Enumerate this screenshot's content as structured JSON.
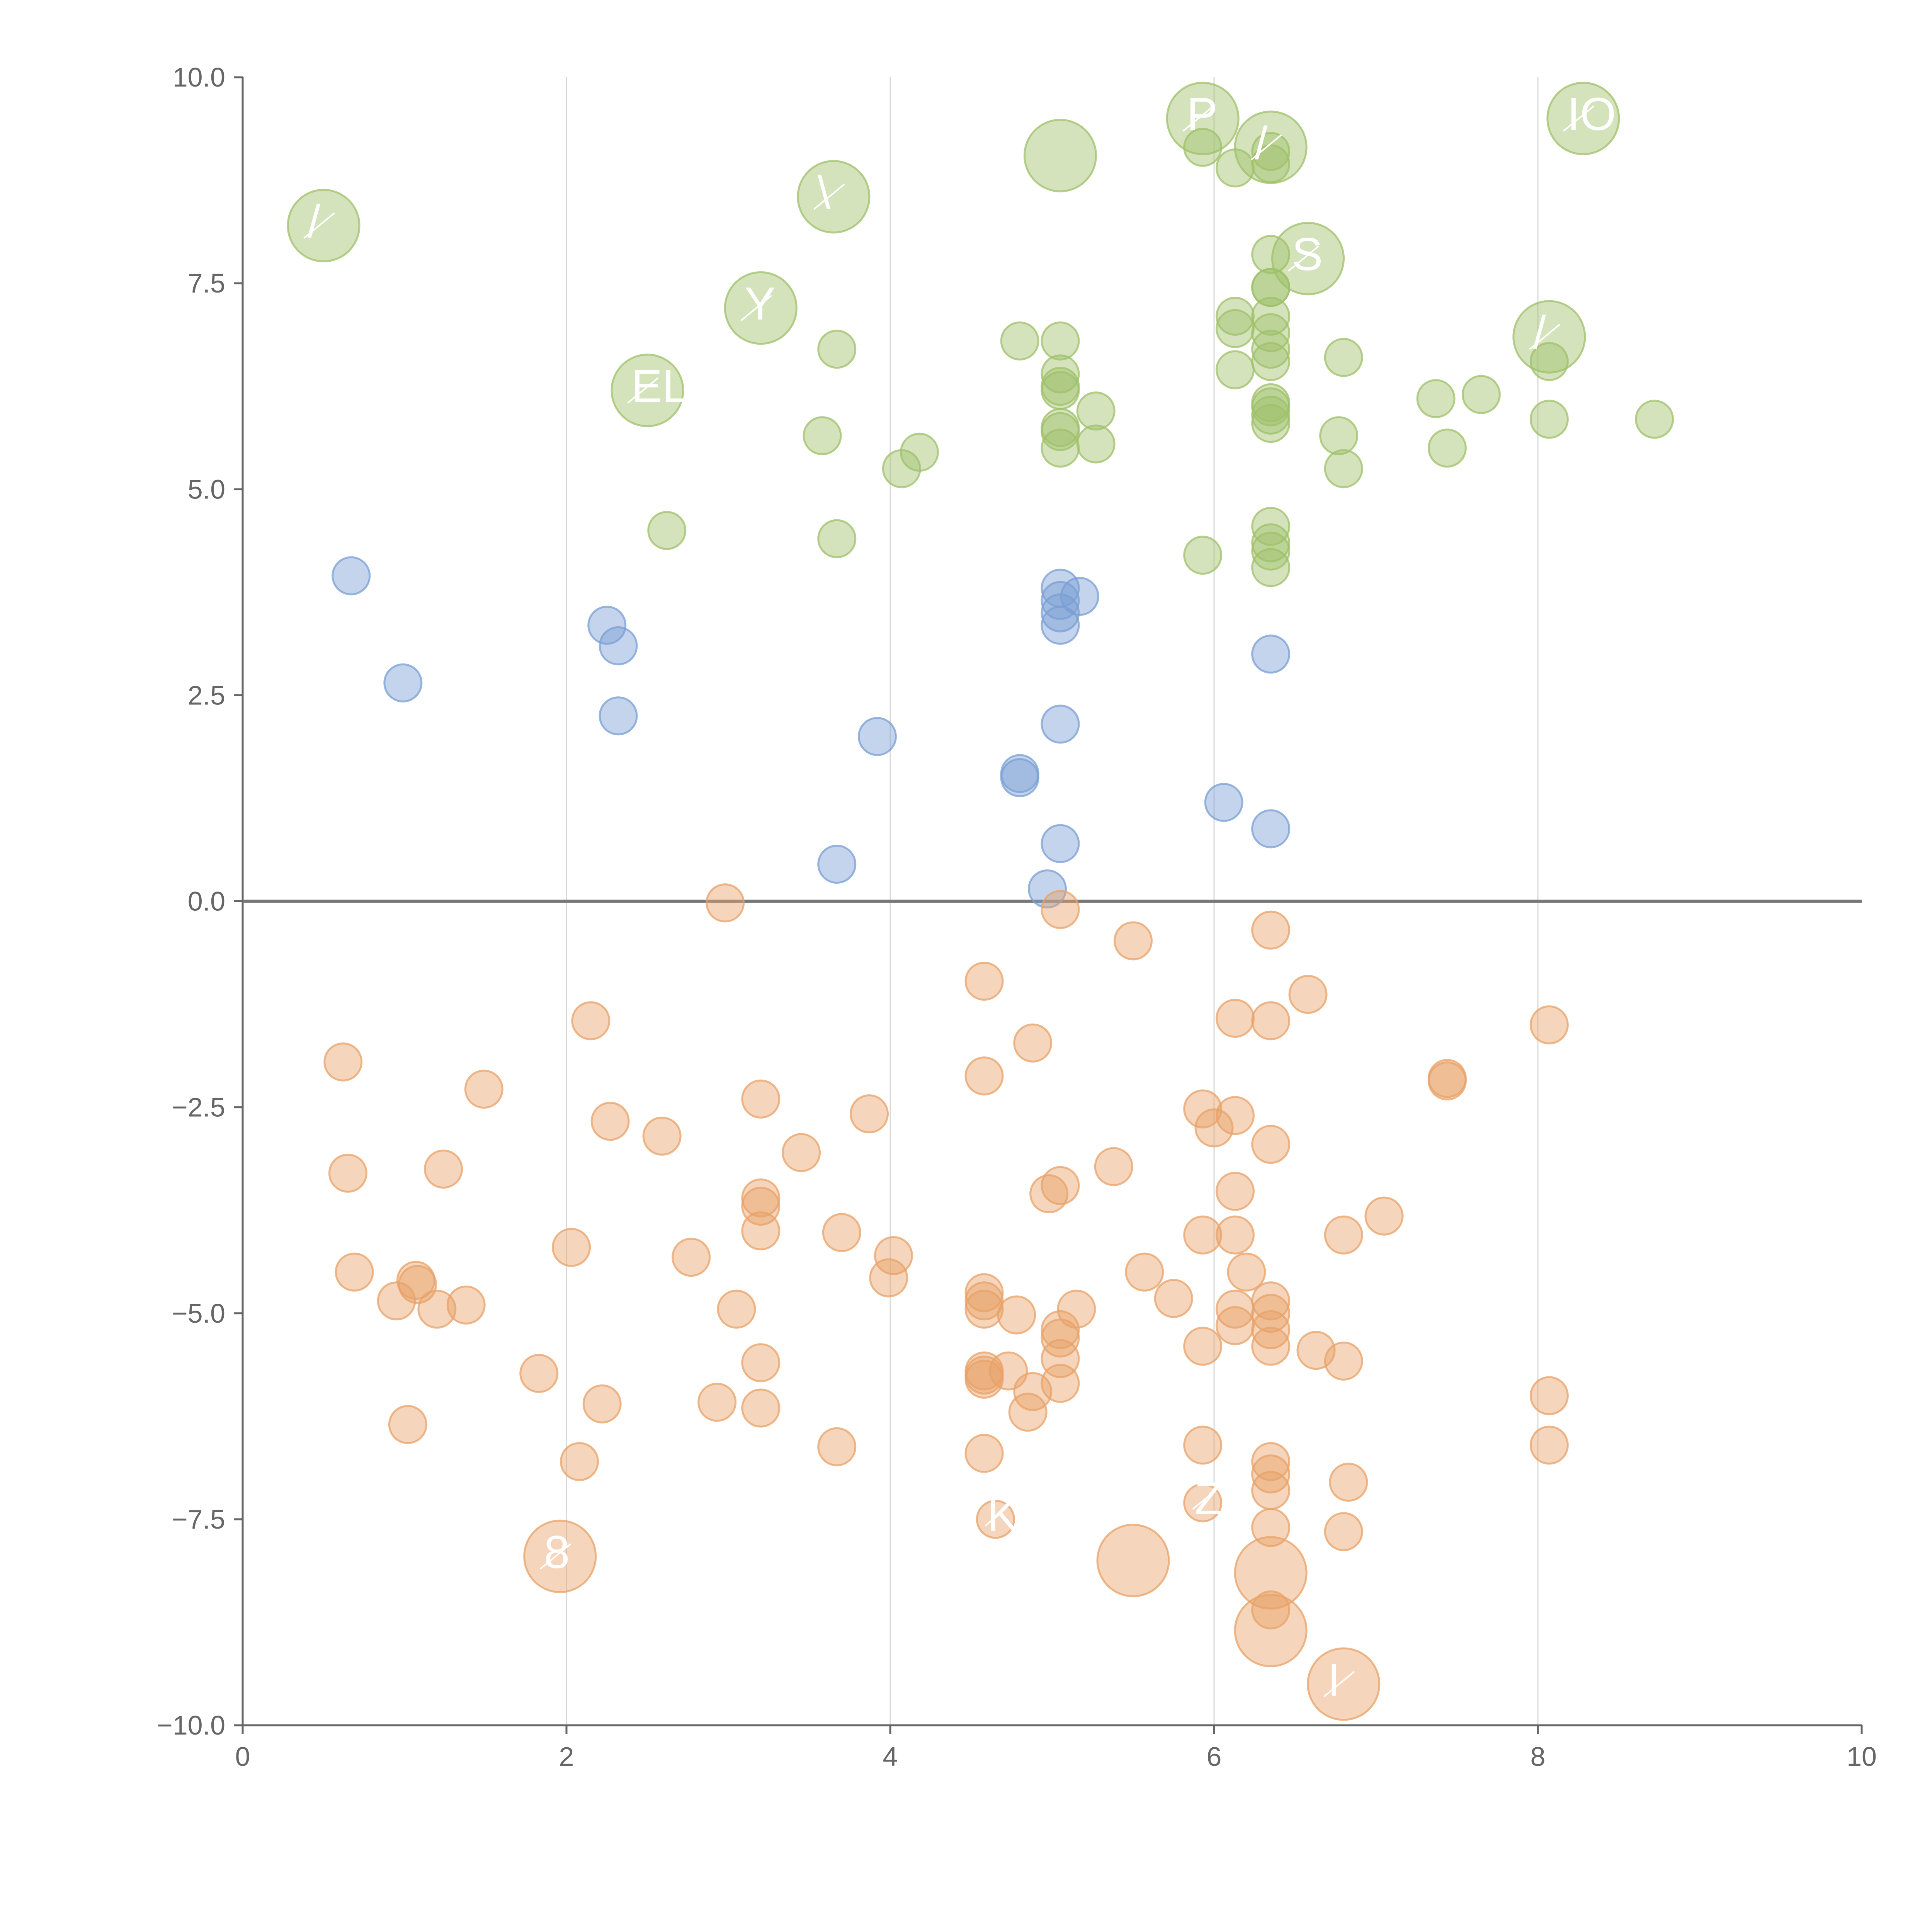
{
  "chart_data": {
    "type": "scatter",
    "title": "",
    "xlabel": "",
    "ylabel": "",
    "xlim": [
      0,
      10
    ],
    "ylim": [
      -10,
      10
    ],
    "x_ticks": [
      "0",
      "2",
      "4",
      "6",
      "8",
      "10"
    ],
    "y_ticks": [
      "10.0",
      "7.5",
      "5.0",
      "2.5",
      "0.0",
      "−2.5",
      "−5.0",
      "−7.5",
      "−10.0"
    ],
    "x_tick_values": [
      0,
      2,
      4,
      6,
      8,
      10
    ],
    "y_tick_values": [
      10,
      7.5,
      5,
      2.5,
      0,
      -2.5,
      -5,
      -7.5,
      -10
    ],
    "grid": "vertical",
    "series": [
      {
        "name": "green",
        "color": "#9fc06a",
        "points": [
          [
            0.5,
            8.2,
            2.2,
            "/"
          ],
          [
            2.5,
            6.2,
            2.2,
            "EL"
          ],
          [
            3.2,
            7.2,
            2.2,
            "Y"
          ],
          [
            3.65,
            8.55,
            2.2,
            "\\"
          ],
          [
            5.05,
            9.05,
            2.2,
            ""
          ],
          [
            5.93,
            9.5,
            2.2,
            "P"
          ],
          [
            6.35,
            9.15,
            2.2,
            "/"
          ],
          [
            6.58,
            7.8,
            2.2,
            "S"
          ],
          [
            8.07,
            6.85,
            2.2,
            "/"
          ],
          [
            8.28,
            9.5,
            2.2,
            "IOT"
          ],
          [
            5.93,
            9.15,
            1
          ],
          [
            6.13,
            8.9,
            1
          ],
          [
            6.35,
            9.1,
            1
          ],
          [
            6.35,
            8.95,
            1
          ],
          [
            6.35,
            7.85,
            1
          ],
          [
            6.35,
            7.45,
            1
          ],
          [
            6.35,
            7.45,
            1
          ],
          [
            6.35,
            7.1,
            1
          ],
          [
            6.35,
            6.9,
            1
          ],
          [
            6.35,
            6.7,
            1
          ],
          [
            6.35,
            6.55,
            1
          ],
          [
            6.35,
            6.05,
            1
          ],
          [
            6.35,
            6.0,
            1
          ],
          [
            6.35,
            5.9,
            1
          ],
          [
            6.35,
            5.8,
            1
          ],
          [
            6.35,
            4.55,
            1
          ],
          [
            6.35,
            4.35,
            1
          ],
          [
            6.35,
            4.25,
            1
          ],
          [
            6.35,
            4.05,
            1
          ],
          [
            6.13,
            7.1,
            1
          ],
          [
            6.13,
            6.95,
            1
          ],
          [
            6.13,
            6.45,
            1
          ],
          [
            5.93,
            4.2,
            1
          ],
          [
            5.05,
            6.8,
            1
          ],
          [
            5.05,
            6.4,
            1
          ],
          [
            5.05,
            6.25,
            1
          ],
          [
            5.05,
            6.2,
            1
          ],
          [
            5.05,
            5.75,
            1
          ],
          [
            5.05,
            5.7,
            1
          ],
          [
            5.05,
            5.5,
            1
          ],
          [
            5.27,
            5.95,
            1
          ],
          [
            5.27,
            5.55,
            1
          ],
          [
            4.8,
            6.8,
            1
          ],
          [
            4.07,
            5.25,
            1
          ],
          [
            4.18,
            5.45,
            1
          ],
          [
            3.58,
            5.65,
            1
          ],
          [
            3.67,
            6.7,
            1
          ],
          [
            3.67,
            4.4,
            1
          ],
          [
            2.62,
            4.5,
            1
          ],
          [
            6.77,
            5.65,
            1
          ],
          [
            6.8,
            6.6,
            1
          ],
          [
            6.8,
            5.25,
            1
          ],
          [
            7.37,
            6.1,
            1
          ],
          [
            7.44,
            5.5,
            1
          ],
          [
            7.65,
            6.15,
            1
          ],
          [
            8.07,
            6.55,
            1
          ],
          [
            8.07,
            5.85,
            1
          ],
          [
            8.72,
            5.85,
            1
          ]
        ]
      },
      {
        "name": "blue",
        "color": "#7a9fd4",
        "points": [
          [
            0.67,
            3.95,
            1
          ],
          [
            0.99,
            2.65,
            1
          ],
          [
            2.25,
            3.35,
            1
          ],
          [
            2.32,
            3.1,
            1
          ],
          [
            2.32,
            2.25,
            1
          ],
          [
            3.92,
            2.0,
            1
          ],
          [
            3.67,
            0.45,
            1
          ],
          [
            4.8,
            1.55,
            1
          ],
          [
            4.8,
            1.5,
            1
          ],
          [
            4.97,
            0.15,
            1
          ],
          [
            5.05,
            0.7,
            1
          ],
          [
            5.05,
            2.15,
            1
          ],
          [
            5.05,
            3.8,
            1
          ],
          [
            5.05,
            3.65,
            1
          ],
          [
            5.05,
            3.5,
            1
          ],
          [
            5.05,
            3.35,
            1
          ],
          [
            5.17,
            3.7,
            1
          ],
          [
            6.06,
            1.2,
            1
          ],
          [
            6.35,
            0.88,
            1
          ],
          [
            6.35,
            3.0,
            1
          ]
        ]
      },
      {
        "name": "orange",
        "color": "#e8a268",
        "points": [
          [
            1.96,
            -7.95,
            2.2,
            "8"
          ],
          [
            4.65,
            -7.5,
            1,
            "K"
          ],
          [
            5.93,
            -7.3,
            1,
            "Z"
          ],
          [
            5.5,
            -8.0,
            2.2,
            ""
          ],
          [
            6.35,
            -8.15,
            2.2,
            ""
          ],
          [
            6.35,
            -8.85,
            2.2,
            ""
          ],
          [
            6.8,
            -9.5,
            2.2,
            "I"
          ],
          [
            2.98,
            -0.02,
            1
          ],
          [
            5.05,
            -0.1,
            1
          ],
          [
            5.5,
            -0.48,
            1
          ],
          [
            6.35,
            -0.35,
            1
          ],
          [
            4.58,
            -0.97,
            1
          ],
          [
            6.58,
            -1.13,
            1
          ],
          [
            2.15,
            -1.45,
            1
          ],
          [
            6.13,
            -1.42,
            1
          ],
          [
            6.35,
            -1.45,
            1
          ],
          [
            8.07,
            -1.5,
            1
          ],
          [
            4.88,
            -1.72,
            1
          ],
          [
            0.62,
            -1.95,
            1
          ],
          [
            4.58,
            -2.12,
            1
          ],
          [
            7.44,
            -2.15,
            1
          ],
          [
            7.44,
            -2.18,
            1
          ],
          [
            1.49,
            -2.28,
            1
          ],
          [
            3.2,
            -2.4,
            1
          ],
          [
            5.93,
            -2.52,
            1
          ],
          [
            6.13,
            -2.6,
            1
          ],
          [
            3.87,
            -2.58,
            1
          ],
          [
            2.27,
            -2.67,
            1
          ],
          [
            2.59,
            -2.85,
            1
          ],
          [
            6.0,
            -2.75,
            1
          ],
          [
            6.35,
            -2.95,
            1
          ],
          [
            3.45,
            -3.05,
            1
          ],
          [
            5.38,
            -3.22,
            1
          ],
          [
            0.65,
            -3.3,
            1
          ],
          [
            1.24,
            -3.25,
            1
          ],
          [
            5.05,
            -3.45,
            1
          ],
          [
            4.98,
            -3.55,
            1
          ],
          [
            6.13,
            -3.52,
            1
          ],
          [
            3.2,
            -3.6,
            1
          ],
          [
            3.2,
            -3.7,
            1
          ],
          [
            7.05,
            -3.82,
            1
          ],
          [
            3.2,
            -4.0,
            1
          ],
          [
            3.7,
            -4.02,
            1
          ],
          [
            5.93,
            -4.05,
            1
          ],
          [
            6.13,
            -4.05,
            1
          ],
          [
            6.8,
            -4.05,
            1
          ],
          [
            2.03,
            -4.2,
            1
          ],
          [
            4.02,
            -4.3,
            1
          ],
          [
            2.77,
            -4.32,
            1
          ],
          [
            3.99,
            -4.57,
            1
          ],
          [
            0.69,
            -4.5,
            1
          ],
          [
            1.07,
            -4.6,
            1
          ],
          [
            1.08,
            -4.65,
            1
          ],
          [
            5.57,
            -4.5,
            1
          ],
          [
            6.2,
            -4.5,
            1
          ],
          [
            4.58,
            -4.75,
            1
          ],
          [
            4.58,
            -4.85,
            1
          ],
          [
            0.95,
            -4.85,
            1
          ],
          [
            1.2,
            -4.95,
            1
          ],
          [
            1.38,
            -4.9,
            1
          ],
          [
            3.05,
            -4.95,
            1
          ],
          [
            4.58,
            -4.95,
            1
          ],
          [
            4.78,
            -5.02,
            1
          ],
          [
            5.15,
            -4.95,
            1
          ],
          [
            5.75,
            -4.82,
            1
          ],
          [
            6.13,
            -4.95,
            1
          ],
          [
            6.13,
            -5.15,
            1
          ],
          [
            6.35,
            -4.85,
            1
          ],
          [
            6.35,
            -5.0,
            1
          ],
          [
            6.35,
            -5.2,
            1
          ],
          [
            6.35,
            -5.4,
            1
          ],
          [
            5.05,
            -5.2,
            1
          ],
          [
            5.05,
            -5.3,
            1
          ],
          [
            5.05,
            -5.55,
            1
          ],
          [
            5.05,
            -5.85,
            1
          ],
          [
            5.93,
            -5.4,
            1
          ],
          [
            6.63,
            -5.45,
            1
          ],
          [
            6.8,
            -5.58,
            1
          ],
          [
            3.2,
            -5.6,
            1
          ],
          [
            4.58,
            -5.7,
            1
          ],
          [
            4.58,
            -5.75,
            1
          ],
          [
            4.58,
            -5.8,
            1
          ],
          [
            4.73,
            -5.7,
            1
          ],
          [
            4.88,
            -5.95,
            1
          ],
          [
            4.85,
            -6.2,
            1
          ],
          [
            1.83,
            -5.73,
            1
          ],
          [
            2.22,
            -6.1,
            1
          ],
          [
            2.93,
            -6.08,
            1
          ],
          [
            3.2,
            -6.15,
            1
          ],
          [
            8.07,
            -6.0,
            1
          ],
          [
            1.02,
            -6.35,
            1
          ],
          [
            8.07,
            -6.6,
            1
          ],
          [
            3.67,
            -6.62,
            1
          ],
          [
            5.93,
            -6.6,
            1
          ],
          [
            4.58,
            -6.7,
            1
          ],
          [
            2.08,
            -6.8,
            1
          ],
          [
            6.35,
            -6.8,
            1
          ],
          [
            6.35,
            -6.95,
            1
          ],
          [
            6.35,
            -7.15,
            1
          ],
          [
            6.83,
            -7.05,
            1
          ],
          [
            6.35,
            -7.6,
            1
          ],
          [
            6.8,
            -7.65,
            1
          ],
          [
            6.35,
            -8.6,
            1
          ]
        ]
      }
    ]
  }
}
